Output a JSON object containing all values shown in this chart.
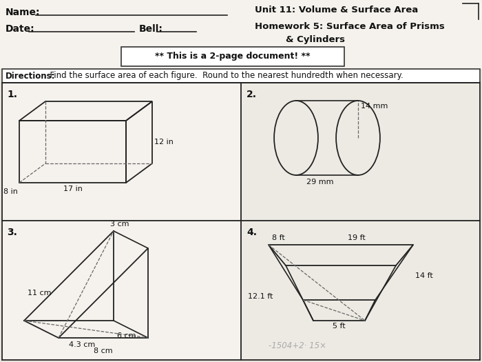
{
  "bg_color": "#e8e4dc",
  "cell_bg": "#f2efe8",
  "white": "#ffffff",
  "line_color": "#222222",
  "dash_color": "#666666",
  "title_unit": "Unit 11: Volume & Surface Area",
  "title_hw": "Homework 5: Surface Area of Prisms",
  "title_hw2": "& Cylinders",
  "name_label": "Name:",
  "date_label": "Date:",
  "bell_label": "Bell:",
  "banner": "** This is a 2-page document! **",
  "directions": "  Find the surface area of each figure.  Round to the nearest hundredth when necessary.",
  "directions_bold": "Directions:",
  "prob1": "1.",
  "prob2": "2.",
  "prob3": "3.",
  "prob4": "4.",
  "p1_dims": [
    "8 in",
    "17 in",
    "12 in"
  ],
  "p2_dims": [
    "14 mm",
    "29 mm"
  ],
  "p3_dims": [
    "11 cm",
    "3 cm",
    "6 cm",
    "4.3 cm",
    "8 cm"
  ],
  "p4_dims": [
    "8 ft",
    "19 ft",
    "14 ft",
    "12.1 ft",
    "5 ft"
  ]
}
